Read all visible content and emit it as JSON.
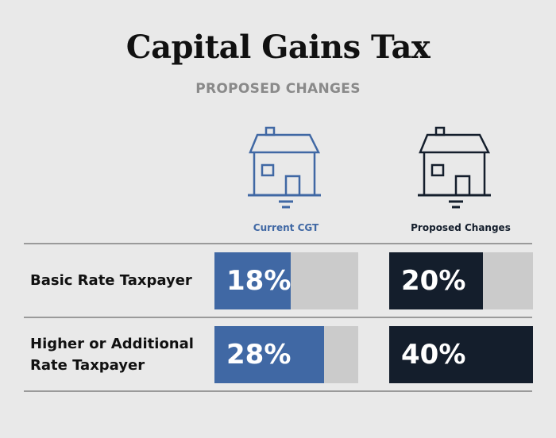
{
  "title": "Capital Gains Tax",
  "subtitle": "PROPOSED CHANGES",
  "colors": {
    "current": "#4068a4",
    "proposed": "#141e2c",
    "track": "#cbcbcb",
    "background": "#e9e9e9"
  },
  "icons": {
    "column_icon": "house-icon"
  },
  "chart_data": {
    "type": "bar",
    "title": "Capital Gains Tax",
    "subtitle": "PROPOSED CHANGES",
    "categories": [
      "Basic Rate Taxpayer",
      "Higher or Additional Rate Taxpayer"
    ],
    "series": [
      {
        "name": "Current CGT",
        "values": [
          18,
          28
        ],
        "labels": [
          "18%",
          "28%"
        ],
        "fill": [
          0.53,
          0.76
        ]
      },
      {
        "name": "Proposed Changes",
        "values": [
          20,
          40
        ],
        "labels": [
          "20%",
          "40%"
        ],
        "fill": [
          0.65,
          1.0
        ]
      }
    ],
    "unit": "%"
  }
}
